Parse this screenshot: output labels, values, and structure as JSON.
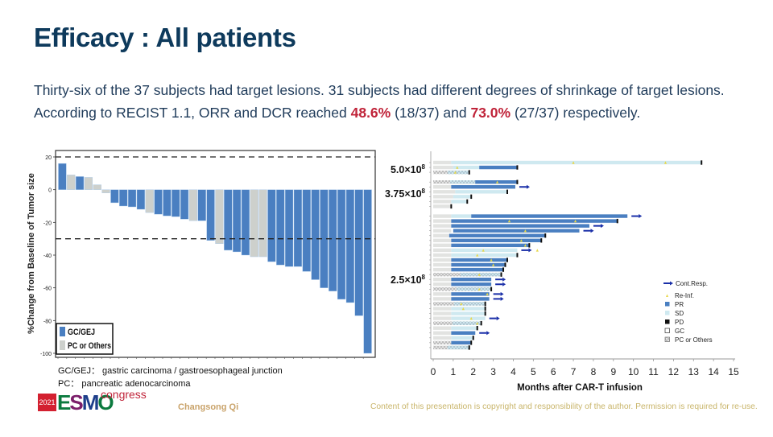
{
  "slide": {
    "title": "Efficacy : All patients",
    "intro_line1": "Thirty-six of the 37 subjects had target lesions. 31 subjects had different degrees of shrinkage of target lesions.",
    "intro_line2_prefix": "According to RECIST 1.1, ORR and DCR reached ",
    "orr_value": "48.6%",
    "orr_fraction": " (18/37) and ",
    "dcr_value": "73.0%",
    "dcr_fraction": " (27/37) respectively.",
    "highlight_color": "#c0243a",
    "definitions": [
      "GC/GEJ： gastric carcinoma / gastroesophageal junction",
      "PC： pancreatic adenocarcinoma"
    ],
    "logo_year": "2021",
    "logo_letters": [
      "E",
      "S",
      "M",
      "O"
    ],
    "logo_suffix": "congress",
    "author": "Changsong Qi",
    "copyright": "Content of this presentation is copyright and responsibility of the author. Permission is required for re-use."
  },
  "chart_data": [
    {
      "type": "bar",
      "subtype": "waterfall",
      "title": "",
      "xlabel": "",
      "ylabel": "%Change from Baseline of Tumor size",
      "ylim": [
        -100,
        20
      ],
      "yticks": [
        20,
        0,
        -20,
        -40,
        -60,
        -80,
        -100
      ],
      "reference_lines": [
        20,
        -30
      ],
      "legend_position": "bottom-left",
      "legend": [
        {
          "name": "GC/GEJ",
          "color": "#4a7fc1"
        },
        {
          "name": "PC or Others",
          "color": "#cdd0cc"
        }
      ],
      "values": [
        16,
        9,
        8,
        7.5,
        3,
        -2,
        -8,
        -10,
        -10.5,
        -12,
        -14,
        -15,
        -16,
        -16.5,
        -18,
        -19,
        -19,
        -31,
        -33,
        -37,
        -38,
        -40,
        -41,
        -41,
        -44,
        -46,
        -47,
        -47,
        -50,
        -55,
        -60,
        -62,
        -67,
        -69,
        -77,
        -100
      ],
      "groups": [
        "GC/GEJ",
        "PC or Others",
        "GC/GEJ",
        "PC or Others",
        "PC or Others",
        "PC or Others",
        "GC/GEJ",
        "GC/GEJ",
        "GC/GEJ",
        "GC/GEJ",
        "PC or Others",
        "GC/GEJ",
        "GC/GEJ",
        "GC/GEJ",
        "GC/GEJ",
        "PC or Others",
        "GC/GEJ",
        "GC/GEJ",
        "PC or Others",
        "GC/GEJ",
        "GC/GEJ",
        "GC/GEJ",
        "PC or Others",
        "PC or Others",
        "GC/GEJ",
        "GC/GEJ",
        "GC/GEJ",
        "GC/GEJ",
        "GC/GEJ",
        "GC/GEJ",
        "GC/GEJ",
        "GC/GEJ",
        "GC/GEJ",
        "GC/GEJ",
        "GC/GEJ",
        "GC/GEJ"
      ]
    },
    {
      "type": "swimmer",
      "title": "",
      "xlabel": "Months after CAR-T infusion",
      "xlim": [
        0,
        15
      ],
      "xticks": [
        0,
        1,
        2,
        3,
        4,
        5,
        6,
        7,
        8,
        9,
        10,
        11,
        12,
        13,
        14,
        15
      ],
      "dose_groups": [
        {
          "label_base": "5.0×10",
          "label_exp": "8",
          "rows": [
            0,
            2
          ]
        },
        {
          "label_base": "3.75×10",
          "label_exp": "8",
          "rows": [
            4,
            8
          ]
        },
        {
          "label_base": "2.5×10",
          "label_exp": "8",
          "rows": [
            10,
            36
          ]
        }
      ],
      "legend_position": "right",
      "legend": [
        {
          "name": "Cont.Resp.",
          "symbol": "arrow",
          "color": "#1a2fa8"
        },
        {
          "name": "Re-Inf.",
          "symbol": "triangle",
          "color": "#e8d84a"
        },
        {
          "name": "PR",
          "symbol": "square",
          "color": "#4a7fc1"
        },
        {
          "name": "SD",
          "symbol": "square",
          "color": "#cfe9f0"
        },
        {
          "name": "PD",
          "symbol": "square",
          "color": "#111111"
        },
        {
          "name": "GC",
          "symbol": "square-outline",
          "color": "#ffffff"
        },
        {
          "name": "PC or Others",
          "symbol": "hatched",
          "color": "#cccccc"
        }
      ],
      "rows": [
        {
          "row": 0,
          "type": "GC",
          "pre": 0.9,
          "sd": [
            0.9,
            13.4
          ],
          "pr": null,
          "end": 13.4,
          "pd": true,
          "reinf": [
            7.0,
            11.6
          ],
          "cont": false
        },
        {
          "row": 1,
          "type": "GC",
          "pre": 1.0,
          "sd": [
            1.0,
            2.3
          ],
          "pr": [
            2.3,
            4.2
          ],
          "end": 4.2,
          "pd": true,
          "reinf": [
            1.2
          ],
          "cont": false
        },
        {
          "row": 2,
          "type": "PC",
          "pre": 1.8,
          "sd": [
            0.0,
            1.8
          ],
          "pr": null,
          "end": 1.8,
          "pd": true,
          "reinf": [
            1.1
          ],
          "cont": false
        },
        {
          "row": 4,
          "type": "PC",
          "pre": 2.1,
          "sd": [
            0.0,
            2.1
          ],
          "pr": [
            2.1,
            4.2
          ],
          "end": 4.2,
          "pd": true,
          "reinf": [
            3.2
          ],
          "cont": false
        },
        {
          "row": 5,
          "type": "GC",
          "pre": 0.9,
          "sd": null,
          "pr": [
            0.9,
            4.1
          ],
          "end": 4.1,
          "pd": false,
          "reinf": [],
          "cont": true
        },
        {
          "row": 6,
          "type": "GC",
          "pre": 1.1,
          "sd": [
            1.1,
            3.7
          ],
          "pr": null,
          "end": 3.7,
          "pd": true,
          "reinf": [],
          "cont": false
        },
        {
          "row": 7,
          "type": "GC",
          "pre": 1.0,
          "sd": [
            1.0,
            1.9
          ],
          "pr": null,
          "end": 1.9,
          "pd": true,
          "reinf": [],
          "cont": false
        },
        {
          "row": 8,
          "type": "GC",
          "pre": 0.9,
          "sd": [
            0.9,
            1.7
          ],
          "pr": null,
          "end": 1.7,
          "pd": true,
          "reinf": [],
          "cont": false
        },
        {
          "row": 9,
          "type": "GC",
          "pre": 0.9,
          "sd": null,
          "pr": null,
          "end": 0.9,
          "pd": true,
          "reinf": [],
          "cont": false
        },
        {
          "row": 11,
          "type": "GC",
          "pre": 0.9,
          "sd": [
            0.9,
            1.9
          ],
          "pr": [
            1.9,
            9.7
          ],
          "end": 9.7,
          "pd": false,
          "reinf": [],
          "cont": true
        },
        {
          "row": 12,
          "type": "GC",
          "pre": 0.9,
          "sd": null,
          "pr": [
            0.9,
            9.2
          ],
          "end": 9.2,
          "pd": true,
          "reinf": [
            3.8,
            7.1
          ],
          "cont": false
        },
        {
          "row": 13,
          "type": "GC",
          "pre": 0.9,
          "sd": null,
          "pr": [
            0.9,
            7.8
          ],
          "end": 7.8,
          "pd": false,
          "reinf": [],
          "cont": true
        },
        {
          "row": 14,
          "type": "GC",
          "pre": 0.9,
          "sd": null,
          "pr": [
            1.0,
            7.3
          ],
          "end": 7.3,
          "pd": false,
          "reinf": [
            4.6
          ],
          "cont": true
        },
        {
          "row": 15,
          "type": "GC",
          "pre": 0.8,
          "sd": null,
          "pr": [
            0.8,
            5.6
          ],
          "end": 5.6,
          "pd": true,
          "reinf": [],
          "cont": false
        },
        {
          "row": 16,
          "type": "GC",
          "pre": 0.9,
          "sd": null,
          "pr": [
            0.9,
            5.4
          ],
          "end": 5.4,
          "pd": true,
          "reinf": [
            4.4
          ],
          "cont": false
        },
        {
          "row": 17,
          "type": "GC",
          "pre": 0.9,
          "sd": null,
          "pr": [
            0.9,
            4.8
          ],
          "end": 4.8,
          "pd": true,
          "reinf": [
            4.6
          ],
          "cont": false
        },
        {
          "row": 18,
          "type": "GC",
          "pre": 0.9,
          "sd": [
            0.9,
            4.2
          ],
          "pr": null,
          "end": 4.2,
          "pd": false,
          "reinf": [
            2.5,
            5.2
          ],
          "cont": true
        },
        {
          "row": 19,
          "type": "GC",
          "pre": 0.9,
          "sd": [
            0.9,
            4.2
          ],
          "pr": null,
          "end": 4.2,
          "pd": true,
          "reinf": [
            2.2
          ],
          "cont": false
        },
        {
          "row": 20,
          "type": "GC",
          "pre": 0.9,
          "sd": null,
          "pr": [
            0.9,
            3.7
          ],
          "end": 3.7,
          "pd": true,
          "reinf": [
            2.9
          ],
          "cont": false
        },
        {
          "row": 21,
          "type": "GC",
          "pre": 0.9,
          "sd": null,
          "pr": [
            0.9,
            3.6
          ],
          "end": 3.6,
          "pd": true,
          "reinf": [
            3.0
          ],
          "cont": false
        },
        {
          "row": 22,
          "type": "GC",
          "pre": 0.9,
          "sd": null,
          "pr": [
            0.9,
            3.5
          ],
          "end": 3.5,
          "pd": true,
          "reinf": [],
          "cont": false
        },
        {
          "row": 23,
          "type": "PC",
          "pre": 3.4,
          "sd": [
            0.0,
            3.4
          ],
          "pr": null,
          "end": 3.4,
          "pd": true,
          "reinf": [
            2.3
          ],
          "cont": false
        },
        {
          "row": 24,
          "type": "GC",
          "pre": 0.9,
          "sd": null,
          "pr": [
            0.9,
            2.9
          ],
          "end": 2.9,
          "pd": false,
          "reinf": [],
          "cont": true
        },
        {
          "row": 25,
          "type": "GC",
          "pre": 0.9,
          "sd": null,
          "pr": [
            0.9,
            2.9
          ],
          "end": 2.9,
          "pd": false,
          "reinf": [],
          "cont": true
        },
        {
          "row": 26,
          "type": "PC",
          "pre": 2.9,
          "sd": [
            0.0,
            2.9
          ],
          "pr": null,
          "end": 2.9,
          "pd": true,
          "reinf": [
            2.3
          ],
          "cont": false
        },
        {
          "row": 27,
          "type": "GC",
          "pre": 0.9,
          "sd": null,
          "pr": [
            0.9,
            2.8
          ],
          "end": 2.8,
          "pd": false,
          "reinf": [
            2.7
          ],
          "cont": true
        },
        {
          "row": 28,
          "type": "GC",
          "pre": 0.9,
          "sd": null,
          "pr": [
            0.9,
            2.8
          ],
          "end": 2.8,
          "pd": false,
          "reinf": [],
          "cont": true
        },
        {
          "row": 29,
          "type": "PC",
          "pre": 2.6,
          "sd": [
            0.0,
            2.6
          ],
          "pr": null,
          "end": 2.6,
          "pd": true,
          "reinf": [
            1.4
          ],
          "cont": false
        },
        {
          "row": 30,
          "type": "GC",
          "pre": 0.9,
          "sd": [
            0.9,
            2.6
          ],
          "pr": null,
          "end": 2.6,
          "pd": true,
          "reinf": [
            1.5
          ],
          "cont": false
        },
        {
          "row": 31,
          "type": "GC",
          "pre": 0.9,
          "sd": [
            0.9,
            2.6
          ],
          "pr": null,
          "end": 2.6,
          "pd": true,
          "reinf": [],
          "cont": false
        },
        {
          "row": 32,
          "type": "GC",
          "pre": 0.9,
          "sd": [
            0.9,
            2.6
          ],
          "pr": null,
          "end": 2.6,
          "pd": false,
          "reinf": [
            1.9
          ],
          "cont": true
        },
        {
          "row": 33,
          "type": "PC",
          "pre": 2.4,
          "sd": [
            0.0,
            2.4
          ],
          "pr": null,
          "end": 2.4,
          "pd": true,
          "reinf": [
            2.2
          ],
          "cont": false
        },
        {
          "row": 34,
          "type": "GC",
          "pre": 0.9,
          "sd": [
            0.9,
            2.2
          ],
          "pr": null,
          "end": 2.2,
          "pd": true,
          "reinf": [],
          "cont": false
        },
        {
          "row": 35,
          "type": "GC",
          "pre": 0.9,
          "sd": [
            0.9,
            2.1
          ],
          "pr": [
            0.9,
            2.1
          ],
          "end": 2.1,
          "pd": false,
          "reinf": [],
          "cont": true
        },
        {
          "row": 36,
          "type": "GC",
          "pre": 0.9,
          "sd": [
            0.9,
            2.0
          ],
          "pr": null,
          "end": 2.0,
          "pd": true,
          "reinf": [],
          "cont": false
        },
        {
          "row": 37,
          "type": "PC",
          "pre": 0.9,
          "sd": null,
          "pr": [
            0.9,
            1.9
          ],
          "end": 1.9,
          "pd": true,
          "reinf": [],
          "cont": false
        },
        {
          "row": 38,
          "type": "PC",
          "pre": 1.8,
          "sd": [
            0.0,
            1.8
          ],
          "pr": null,
          "end": 1.8,
          "pd": true,
          "reinf": [],
          "cont": false
        }
      ]
    }
  ]
}
